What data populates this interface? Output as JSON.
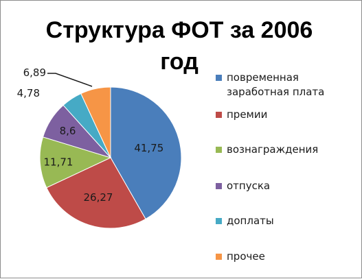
{
  "chart_data": {
    "type": "pie",
    "title": "Структура ФОТ за 2006 год",
    "categories": [
      "повременная заработная плата",
      "премии",
      "вознаграждения",
      "отпуска",
      "доплаты",
      "прочее"
    ],
    "values": [
      41.75,
      26.27,
      11.71,
      8.6,
      4.78,
      6.89
    ],
    "data_labels": [
      "41,75",
      "26,27",
      "11,71",
      "8,6",
      "4,78",
      "6,89"
    ],
    "colors": [
      "#4a7ebb",
      "#be4b48",
      "#98b954",
      "#7d60a0",
      "#46aac5",
      "#f69546"
    ],
    "legend_position": "right"
  }
}
